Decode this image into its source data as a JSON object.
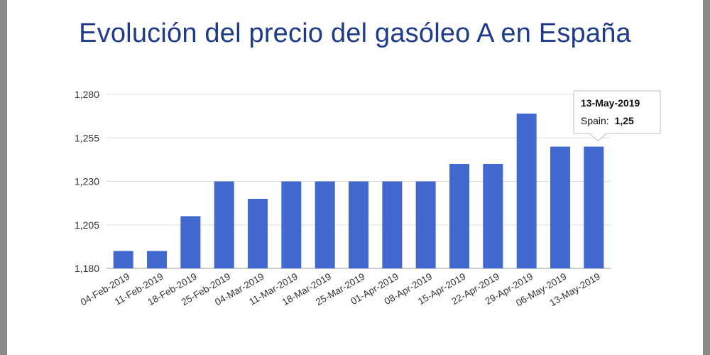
{
  "chart_data": {
    "type": "bar",
    "title": "Evolución del precio del gasóleo A en España",
    "categories": [
      "04-Feb-2019",
      "11-Feb-2019",
      "18-Feb-2019",
      "25-Feb-2019",
      "04-Mar-2019",
      "11-Mar-2019",
      "18-Mar-2019",
      "25-Mar-2019",
      "01-Apr-2019",
      "08-Apr-2019",
      "15-Apr-2019",
      "22-Apr-2019",
      "29-Apr-2019",
      "06-May-2019",
      "13-May-2019"
    ],
    "values": [
      1.19,
      1.19,
      1.21,
      1.23,
      1.22,
      1.23,
      1.23,
      1.23,
      1.23,
      1.23,
      1.24,
      1.24,
      1.269,
      1.25,
      1.25
    ],
    "yticks": [
      "1,180",
      "1,205",
      "1,230",
      "1,255",
      "1,280"
    ],
    "ylim": [
      1.18,
      1.28
    ],
    "xlabel": "",
    "ylabel": "",
    "grid": true,
    "bar_color": "#4169cf",
    "tooltip": {
      "date": "13-May-2019",
      "series": "Spain:",
      "value": "1,25"
    }
  }
}
